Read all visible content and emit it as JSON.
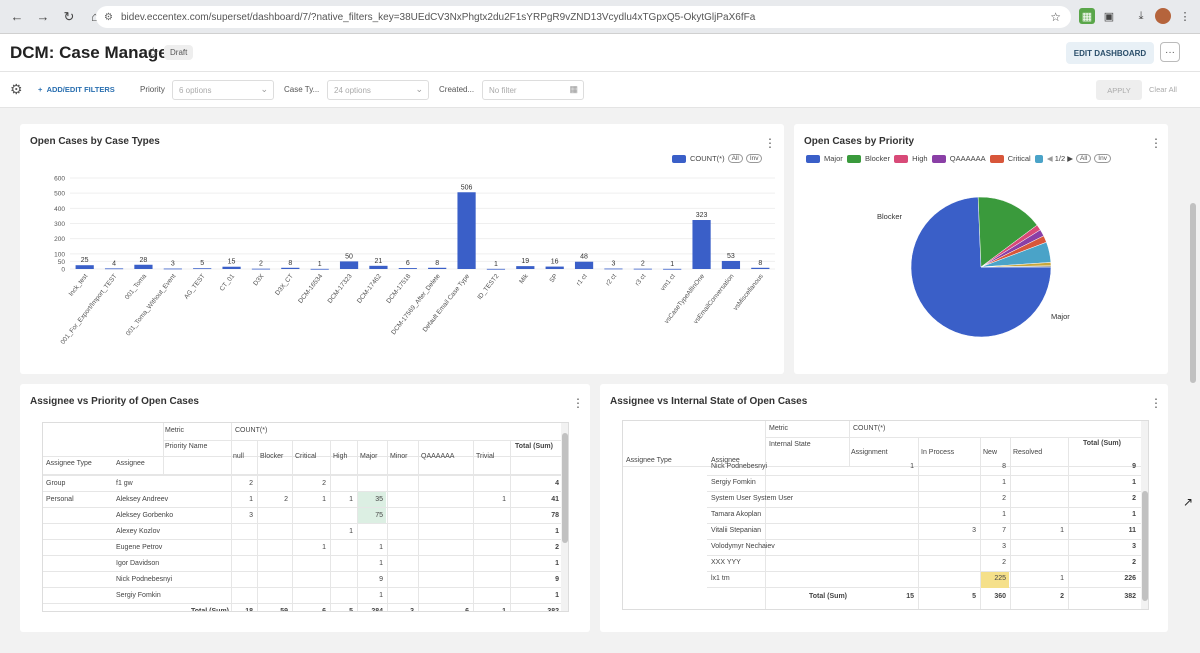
{
  "browser": {
    "url": "bidev.eccentex.com/superset/dashboard/7/?native_filters_key=38UEdCV3NxPhgtx2du2F1sYRPgR9vZND13Vcydlu4xTGpxQ5-OkytGljPaX6fFa"
  },
  "header": {
    "title": "DCM: Case Manager",
    "badge": "Draft",
    "edit_label": "EDIT DASHBOARD",
    "more": "···"
  },
  "filters": {
    "add_label": "ADD/EDIT FILTERS",
    "priority_label": "Priority",
    "priority_placeholder": "6 options",
    "casetype_label": "Case Ty...",
    "casetype_placeholder": "24 options",
    "created_label": "Created...",
    "created_placeholder": "No filter",
    "apply_label": "APPLY",
    "clear_label": "Clear All"
  },
  "bar_card": {
    "title": "Open Cases by Case Types",
    "legend": "COUNT(*)",
    "all": "All",
    "inv": "Inv"
  },
  "pie_card": {
    "title": "Open Cases by Priority",
    "legend": [
      "Major",
      "Blocker",
      "High",
      "QAAAAAA",
      "Critical"
    ],
    "page": "1/2",
    "all": "All",
    "inv": "Inv",
    "label_major": "Major",
    "label_blocker": "Blocker"
  },
  "colors": {
    "major": "#3a5fc8",
    "blocker": "#3a9a3c",
    "high": "#d84a78",
    "qa": "#8a3fa6",
    "critical": "#d8563a",
    "extra": "#4aa3c8"
  },
  "chart_data": [
    {
      "type": "bar",
      "title": "Open Cases by Case Types",
      "categories": [
        "Inck_test",
        "001_For_Export/Import_TEST",
        "001_Toma",
        "001_Toma_Without_Event",
        "AG_TEST",
        "CT_01",
        "D3X",
        "D3X_CT",
        "DCM-16534",
        "DCM-17323",
        "DCM-17462",
        "DCM-17518",
        "DCM-17569_After_Delete",
        "Default Email Case Type",
        "ID_TEST2",
        "Mik",
        "SP",
        "r1 ct",
        "r2 ct",
        "r3 ct",
        "vm1 ct",
        "vsCaseTypeAllInOne",
        "vsEmailConversation",
        "vsMiscellanous"
      ],
      "series": [
        {
          "name": "COUNT(*)",
          "values": [
            25,
            4,
            28,
            3,
            5,
            15,
            2,
            8,
            1,
            50,
            21,
            6,
            8,
            506,
            1,
            19,
            16,
            48,
            3,
            2,
            1,
            323,
            53,
            8
          ]
        }
      ],
      "ylim": [
        0,
        600
      ],
      "yticks": [
        0,
        50,
        100,
        200,
        300,
        400,
        500,
        600
      ]
    },
    {
      "type": "pie",
      "title": "Open Cases by Priority",
      "categories": [
        "Major",
        "Blocker",
        "High",
        "QAAAAAA",
        "Critical",
        "null",
        "Minor",
        "Trivial"
      ],
      "values": [
        284,
        59,
        5,
        6,
        6,
        18,
        3,
        1
      ]
    }
  ],
  "table1": {
    "title": "Assignee vs Priority of Open Cases",
    "metric": "Metric",
    "count": "COUNT(*)",
    "priority_name": "Priority Name",
    "assignee_type": "Assignee Type",
    "assignee": "Assignee",
    "total_head": "Total (Sum)",
    "cols": [
      "null",
      "Blocker",
      "Critical",
      "High",
      "Major",
      "Minor",
      "QAAAAAA",
      "Trivial"
    ],
    "rows": [
      {
        "type": "Group",
        "name": "f1 gw",
        "vals": [
          "2",
          "",
          "2",
          "",
          "",
          "",
          "",
          ""
        ],
        "total": "4"
      },
      {
        "type": "Personal",
        "name": "Aleksey Andreev",
        "vals": [
          "1",
          "2",
          "1",
          "1",
          "35",
          "",
          "",
          "1"
        ],
        "total": "41"
      },
      {
        "type": "",
        "name": "Aleksey Gorbenko",
        "vals": [
          "3",
          "",
          "",
          "",
          "75",
          "",
          "",
          ""
        ],
        "total": "78"
      },
      {
        "type": "",
        "name": "Alexey Kozlov",
        "vals": [
          "",
          "",
          "",
          "1",
          "",
          "",
          "",
          ""
        ],
        "total": "1"
      },
      {
        "type": "",
        "name": "Eugene Petrov",
        "vals": [
          "",
          "",
          "1",
          "",
          "1",
          "",
          "",
          ""
        ],
        "total": "2"
      },
      {
        "type": "",
        "name": "Igor Davidson",
        "vals": [
          "",
          "",
          "",
          "",
          "1",
          "",
          "",
          ""
        ],
        "total": "1"
      },
      {
        "type": "",
        "name": "Nick Podnebesnyi",
        "vals": [
          "",
          "",
          "",
          "",
          "9",
          "",
          "",
          ""
        ],
        "total": "9"
      },
      {
        "type": "",
        "name": "Sergiy Fomkin",
        "vals": [
          "",
          "",
          "",
          "",
          "1",
          "",
          "",
          ""
        ],
        "total": "1"
      }
    ],
    "total_label": "Total (Sum)",
    "totals": [
      "18",
      "59",
      "6",
      "5",
      "284",
      "3",
      "6",
      "1"
    ],
    "grand": "382"
  },
  "table2": {
    "title": "Assignee vs Internal State of Open Cases",
    "metric": "Metric",
    "count": "COUNT(*)",
    "internal_state": "Internal State",
    "assignee_type": "Assignee Type",
    "assignee": "Assignee",
    "total_head": "Total (Sum)",
    "cols": [
      "Assignment",
      "In Process",
      "New",
      "Resolved"
    ],
    "rows": [
      {
        "name": "Nick Podnebesnyi",
        "vals": [
          "1",
          "",
          "8",
          ""
        ],
        "total": "9"
      },
      {
        "name": "Sergiy Fomkin",
        "vals": [
          "",
          "",
          "1",
          ""
        ],
        "total": "1"
      },
      {
        "name": "System User System User",
        "vals": [
          "",
          "",
          "2",
          ""
        ],
        "total": "2"
      },
      {
        "name": "Tamara Akoplan",
        "vals": [
          "",
          "",
          "1",
          ""
        ],
        "total": "1"
      },
      {
        "name": "Vitalii Stepanian",
        "vals": [
          "",
          "3",
          "7",
          "1"
        ],
        "total": "11"
      },
      {
        "name": "Volodymyr Nechaiev",
        "vals": [
          "",
          "",
          "3",
          ""
        ],
        "total": "3"
      },
      {
        "name": "XXX YYY",
        "vals": [
          "",
          "",
          "2",
          ""
        ],
        "total": "2"
      },
      {
        "name": "lx1 tm",
        "vals": [
          "",
          "",
          "225",
          "1"
        ],
        "total": "226"
      }
    ],
    "total_label": "Total (Sum)",
    "totals": [
      "15",
      "5",
      "360",
      "2"
    ],
    "grand": "382"
  }
}
